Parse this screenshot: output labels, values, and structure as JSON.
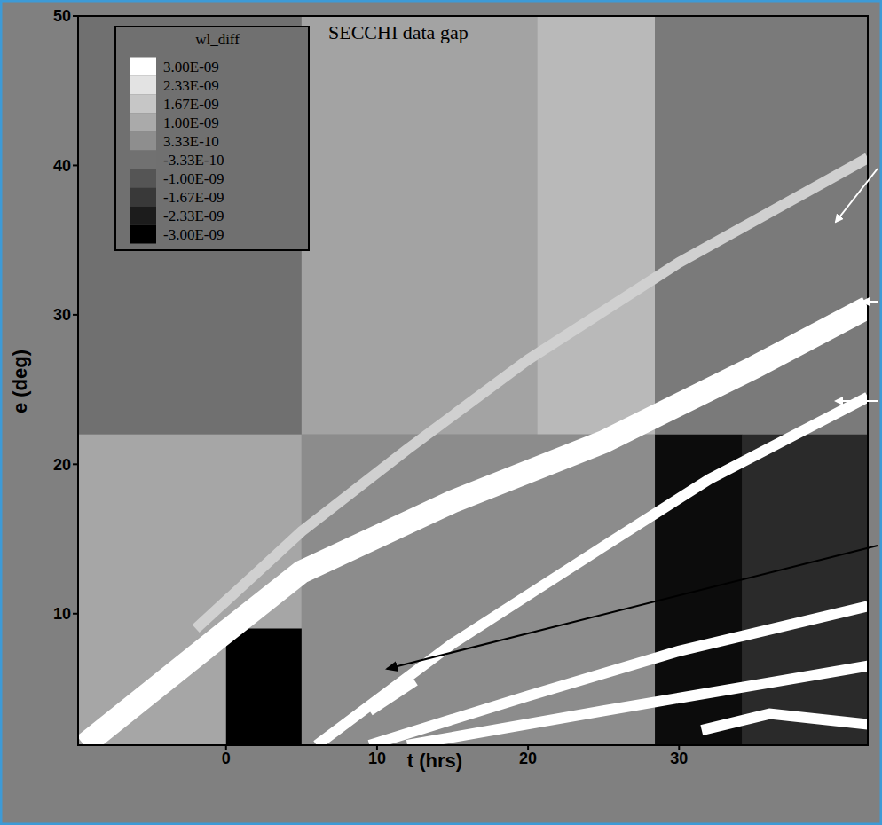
{
  "chart_data": {
    "type": "line",
    "x_label": "t (hrs)",
    "y_label": "e (deg)",
    "xlim": [
      -9.8,
      42.5
    ],
    "xticks": [
      0,
      10,
      20,
      30
    ],
    "ylim": [
      1.2,
      50
    ],
    "yticks": [
      10,
      20,
      30,
      40,
      50
    ],
    "grid": false,
    "annotations": [
      "SECCHI data gap"
    ],
    "colorbar": {
      "title": "wl_diff",
      "range": [
        -3e-09,
        3e-09
      ],
      "ticks": [
        {
          "value": 3e-09,
          "label": "3.00E-09"
        },
        {
          "value": 2.33e-09,
          "label": "2.33E-09"
        },
        {
          "value": 1.67e-09,
          "label": "1.67E-09"
        },
        {
          "value": 1e-09,
          "label": "1.00E-09"
        },
        {
          "value": 3.33e-10,
          "label": "3.33E-10"
        },
        {
          "value": -3.33e-10,
          "label": "-3.33E-10"
        },
        {
          "value": -1e-09,
          "label": "-1.00E-09"
        },
        {
          "value": -1.67e-09,
          "label": "-1.67E-09"
        },
        {
          "value": -2.33e-09,
          "label": "-2.33E-09"
        },
        {
          "value": -3e-09,
          "label": "-3.00E-09"
        }
      ]
    },
    "regions": [
      {
        "x": [
          -9.8,
          5
        ],
        "y": [
          22,
          50
        ],
        "color": "#707070"
      },
      {
        "x": [
          5,
          20.6
        ],
        "y": [
          22,
          50
        ],
        "color": "#a3a3a3"
      },
      {
        "x": [
          20.6,
          28.4
        ],
        "y": [
          22,
          50
        ],
        "color": "#b9b9b9"
      },
      {
        "x": [
          28.4,
          42.5
        ],
        "y": [
          22,
          50
        ],
        "color": "#7a7a7a"
      },
      {
        "x": [
          -9.8,
          5
        ],
        "y": [
          1.2,
          22
        ],
        "color": "#a6a6a6"
      },
      {
        "x": [
          5,
          28.4
        ],
        "y": [
          1.2,
          22
        ],
        "color": "#8c8c8c"
      },
      {
        "x": [
          28.4,
          34.2
        ],
        "y": [
          1.2,
          22
        ],
        "color": "#0c0c0c"
      },
      {
        "x": [
          34.2,
          42.5
        ],
        "y": [
          1.2,
          22
        ],
        "color": "#2a2a2a"
      },
      {
        "x": [
          0,
          5
        ],
        "y": [
          1.2,
          9
        ],
        "color": "#000000"
      }
    ],
    "series": [
      {
        "color": "#d0d0d0",
        "line_style": "solid",
        "x": [
          -2,
          5,
          12,
          20,
          30,
          42.5
        ],
        "values": [
          9,
          15.5,
          21,
          27,
          33.5,
          40.5
        ]
      },
      {
        "color": "#ffffff",
        "line_style": "wide",
        "x": [
          -9.4,
          0,
          5,
          15,
          25,
          35,
          42.5
        ],
        "values": [
          1.2,
          8.8,
          12.8,
          17.5,
          21.5,
          26.5,
          30.5
        ]
      },
      {
        "color": "#ffffff",
        "line_style": "solid",
        "x": [
          6,
          15,
          25,
          32,
          42.5
        ],
        "values": [
          1.2,
          8,
          14.5,
          19,
          24.5
        ]
      },
      {
        "color": "#ffffff",
        "line_style": "solid",
        "x": [
          9.5,
          20,
          30,
          42.5
        ],
        "values": [
          1.2,
          4.5,
          7.5,
          10.5
        ]
      },
      {
        "color": "#ffffff",
        "line_style": "solid",
        "x": [
          12,
          25,
          42.5
        ],
        "values": [
          1.2,
          3.5,
          6.5
        ]
      },
      {
        "color": "#ffffff",
        "line_style": "solid",
        "x": [
          9.5,
          12.5
        ],
        "values": [
          3.5,
          5.5
        ]
      },
      {
        "color": "#ffffff",
        "line_style": "solid",
        "x": [
          31.5,
          36,
          42.5
        ],
        "values": [
          2.2,
          3.3,
          2.6
        ]
      }
    ]
  }
}
